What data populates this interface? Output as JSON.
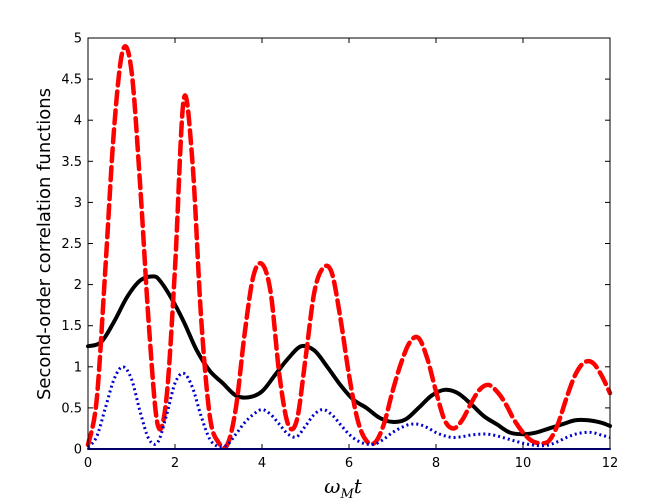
{
  "chart_data": {
    "type": "line",
    "title": "",
    "xlabel": {
      "base": "ω",
      "sub": "M",
      "suffix": "t"
    },
    "ylabel": "Second-order correlation functions",
    "xlim": [
      0,
      12
    ],
    "ylim": [
      0,
      5
    ],
    "xticks": [
      0,
      2,
      4,
      6,
      8,
      10,
      12
    ],
    "yticks": [
      0,
      0.5,
      1,
      1.5,
      2,
      2.5,
      3,
      3.5,
      4,
      4.5,
      5
    ],
    "xtick_labels": [
      "0",
      "2",
      "4",
      "6",
      "8",
      "10",
      "12"
    ],
    "ytick_labels": [
      "0",
      "0.5",
      "1",
      "1.5",
      "2",
      "2.5",
      "3",
      "3.5",
      "4",
      "4.5",
      "5"
    ],
    "grid": false,
    "legend": null,
    "series": [
      {
        "style": "solid",
        "color": "#000000",
        "x": [
          0,
          0.3,
          0.6,
          0.9,
          1.2,
          1.5,
          1.65,
          1.9,
          2.2,
          2.5,
          2.8,
          3.1,
          3.4,
          3.7,
          4.0,
          4.3,
          4.6,
          4.9,
          5.2,
          5.5,
          5.8,
          6.1,
          6.4,
          6.7,
          7.0,
          7.3,
          7.6,
          7.9,
          8.2,
          8.5,
          8.8,
          9.1,
          9.4,
          9.7,
          10.0,
          10.3,
          10.6,
          10.9,
          11.2,
          11.5,
          11.8,
          12.0
        ],
        "y": [
          1.25,
          1.3,
          1.55,
          1.85,
          2.05,
          2.1,
          2.05,
          1.85,
          1.55,
          1.2,
          0.95,
          0.8,
          0.65,
          0.63,
          0.7,
          0.9,
          1.1,
          1.25,
          1.2,
          1.0,
          0.78,
          0.6,
          0.5,
          0.38,
          0.33,
          0.36,
          0.5,
          0.65,
          0.72,
          0.68,
          0.55,
          0.4,
          0.3,
          0.2,
          0.18,
          0.2,
          0.25,
          0.3,
          0.35,
          0.35,
          0.32,
          0.28
        ]
      },
      {
        "style": "dashed",
        "color": "#ff0000",
        "x": [
          0,
          0.2,
          0.4,
          0.6,
          0.8,
          1.0,
          1.2,
          1.4,
          1.6,
          1.8,
          2.0,
          2.2,
          2.4,
          2.6,
          2.8,
          3.0,
          3.2,
          3.4,
          3.6,
          3.8,
          4.0,
          4.2,
          4.4,
          4.6,
          4.8,
          5.0,
          5.2,
          5.4,
          5.6,
          5.8,
          6.0,
          6.2,
          6.4,
          6.6,
          6.8,
          7.0,
          7.2,
          7.4,
          7.6,
          7.8,
          8.0,
          8.2,
          8.4,
          8.6,
          8.8,
          9.0,
          9.2,
          9.4,
          9.6,
          9.8,
          10.0,
          10.2,
          10.4,
          10.6,
          10.8,
          11.0,
          11.2,
          11.4,
          11.6,
          11.8,
          12.0
        ],
        "y": [
          0.05,
          0.6,
          2.2,
          3.9,
          4.85,
          4.6,
          3.2,
          1.5,
          0.3,
          0.6,
          2.2,
          4.25,
          3.5,
          1.6,
          0.4,
          0.08,
          0.05,
          0.5,
          1.4,
          2.1,
          2.25,
          1.9,
          0.9,
          0.3,
          0.35,
          1.1,
          1.9,
          2.2,
          2.15,
          1.6,
          0.9,
          0.35,
          0.1,
          0.08,
          0.3,
          0.7,
          1.05,
          1.3,
          1.35,
          1.1,
          0.7,
          0.35,
          0.25,
          0.35,
          0.55,
          0.72,
          0.78,
          0.7,
          0.55,
          0.35,
          0.2,
          0.1,
          0.07,
          0.1,
          0.3,
          0.62,
          0.9,
          1.05,
          1.05,
          0.9,
          0.68
        ]
      },
      {
        "style": "dotted",
        "color": "#0000cc",
        "x": [
          0,
          0.2,
          0.4,
          0.6,
          0.8,
          1.0,
          1.2,
          1.4,
          1.6,
          1.8,
          2.0,
          2.2,
          2.4,
          2.6,
          2.8,
          3.0,
          3.2,
          3.4,
          3.6,
          3.8,
          4.0,
          4.2,
          4.4,
          4.6,
          4.8,
          5.0,
          5.2,
          5.4,
          5.6,
          5.8,
          6.0,
          6.2,
          6.4,
          6.6,
          6.8,
          7.0,
          7.2,
          7.4,
          7.6,
          7.8,
          8.0,
          8.2,
          8.4,
          8.6,
          8.8,
          9.0,
          9.2,
          9.4,
          9.6,
          9.8,
          10.0,
          10.2,
          10.4,
          10.6,
          10.8,
          11.0,
          11.2,
          11.4,
          11.6,
          11.8,
          12.0
        ],
        "y": [
          0.02,
          0.15,
          0.5,
          0.85,
          1.0,
          0.85,
          0.45,
          0.12,
          0.08,
          0.4,
          0.8,
          0.92,
          0.75,
          0.4,
          0.12,
          0.03,
          0.05,
          0.18,
          0.32,
          0.42,
          0.48,
          0.42,
          0.3,
          0.18,
          0.15,
          0.28,
          0.42,
          0.48,
          0.42,
          0.3,
          0.18,
          0.1,
          0.06,
          0.06,
          0.12,
          0.2,
          0.26,
          0.3,
          0.3,
          0.26,
          0.2,
          0.16,
          0.14,
          0.15,
          0.17,
          0.18,
          0.18,
          0.16,
          0.13,
          0.1,
          0.07,
          0.05,
          0.04,
          0.05,
          0.09,
          0.14,
          0.18,
          0.2,
          0.2,
          0.17,
          0.14
        ]
      },
      {
        "style": "solid",
        "color": "#0000cc",
        "x": [
          0,
          12
        ],
        "y": [
          0,
          0
        ]
      }
    ]
  }
}
